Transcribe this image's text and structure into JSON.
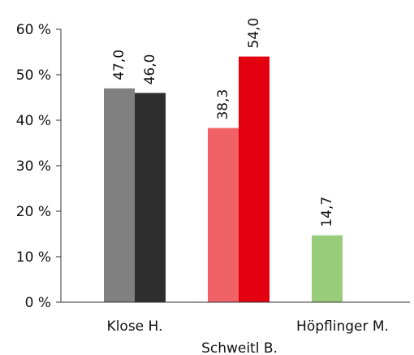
{
  "chart_data": {
    "type": "bar",
    "title": "",
    "xlabel": "",
    "ylabel": "",
    "ylim": [
      0,
      60
    ],
    "yticks": [
      0,
      10,
      20,
      30,
      40,
      50,
      60
    ],
    "ytick_suffix": " %",
    "grid": false,
    "legend": "none",
    "groups": [
      {
        "category": "Klose H.",
        "bars": [
          {
            "value": 47.0,
            "label": "47,0",
            "color": "#808080"
          },
          {
            "value": 46.0,
            "label": "46,0",
            "color": "#2e2e2e"
          }
        ]
      },
      {
        "category": "Schweitl B.",
        "bars": [
          {
            "value": 38.3,
            "label": "38,3",
            "color": "#f06266"
          },
          {
            "value": 54.0,
            "label": "54,0",
            "color": "#e3000f"
          }
        ]
      },
      {
        "category": "Höpflinger M.",
        "bars": [
          {
            "value": 14.7,
            "label": "14,7",
            "color": "#99cc7a"
          }
        ]
      }
    ]
  }
}
